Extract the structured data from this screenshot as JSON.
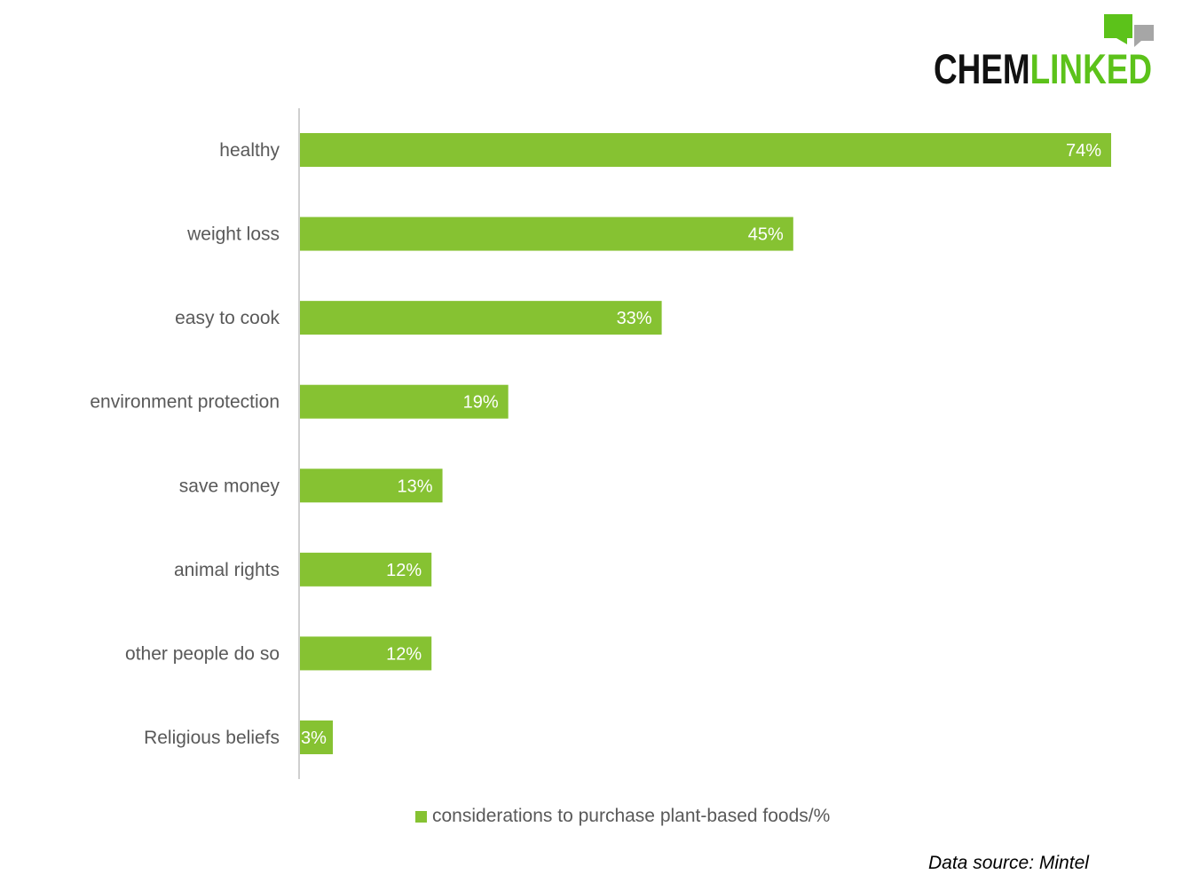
{
  "logo": {
    "text_dark": "CHEM",
    "text_green": "LINKED",
    "colors": {
      "dark": "#111111",
      "green": "#5cc21a",
      "gray": "#a6a6a6"
    }
  },
  "chart_data": {
    "type": "bar",
    "orientation": "horizontal",
    "categories": [
      "healthy",
      "weight loss",
      "easy to cook",
      "environment protection",
      "save money",
      "animal rights",
      "other people do so",
      "Religious beliefs"
    ],
    "values": [
      74,
      45,
      33,
      19,
      13,
      12,
      12,
      3
    ],
    "value_labels": [
      "74%",
      "45%",
      "33%",
      "19%",
      "13%",
      "12%",
      "12%",
      "3%"
    ],
    "series": [
      {
        "name": "considerations to purchase plant-based foods/%",
        "values": [
          74,
          45,
          33,
          19,
          13,
          12,
          12,
          3
        ]
      }
    ],
    "xlim": [
      0,
      80
    ],
    "grid": false,
    "legend_position": "bottom",
    "bar_color": "#86c232"
  },
  "legend": {
    "label": "considerations to purchase plant-based foods/%"
  },
  "source": {
    "text": "Data source: Mintel"
  }
}
